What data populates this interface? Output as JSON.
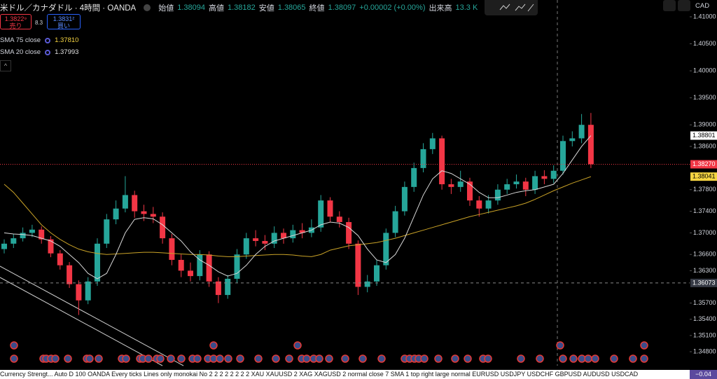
{
  "header": {
    "symbol": "米ドル／カナダドル · 4時間 · OANDA",
    "ohlc": [
      {
        "label": "始値",
        "value": "1.38094"
      },
      {
        "label": "高値",
        "value": "1.38182"
      },
      {
        "label": "安値",
        "value": "1.38065"
      },
      {
        "label": "終値",
        "value": "1.38097"
      }
    ],
    "change": "+0.00002 (+0.00%)",
    "volume_label": "出来高",
    "volume": "13.3 K"
  },
  "trade": {
    "sell_price": "1.3822⁹",
    "sell_label": "売り",
    "spread": "8.3",
    "buy_price": "1.3831²",
    "buy_label": "買い"
  },
  "currency": "CAD",
  "indicator_bar": {
    "text": "Currency Strengt... Auto D 100 OANDA Every ticks Lines only monokai No 2 2 2 2 2 2 2 2 XAU XAUUSD 2 XAG XAGUSD 2 normal close 7 SMA 1 top right large normal EURUSD USDJPY USDCHF GBPUSD AUDUSD USDCAD",
    "value": "−0.04"
  },
  "chart_data": {
    "type": "candlestick",
    "up_color": "#26a69a",
    "down_color": "#f23645",
    "grid": false,
    "ylim": [
      1.34567,
      1.41311
    ],
    "yticks": [
      {
        "value": 1.41,
        "label": "1.41000"
      },
      {
        "value": 1.405,
        "label": "1.40500"
      },
      {
        "value": 1.4,
        "label": "1.40000"
      },
      {
        "value": 1.395,
        "label": "1.39500"
      },
      {
        "value": 1.39,
        "label": "1.39000"
      },
      {
        "value": 1.386,
        "label": "1.38600"
      },
      {
        "value": 1.378,
        "label": "1.37800"
      },
      {
        "value": 1.374,
        "label": "1.37400"
      },
      {
        "value": 1.37,
        "label": "1.37000"
      },
      {
        "value": 1.366,
        "label": "1.36600"
      },
      {
        "value": 1.363,
        "label": "1.36300"
      },
      {
        "value": 1.357,
        "label": "1.35700"
      },
      {
        "value": 1.354,
        "label": "1.35400"
      },
      {
        "value": 1.351,
        "label": "1.35100"
      },
      {
        "value": 1.348,
        "label": "1.34800"
      }
    ],
    "open": [
      1.367,
      1.368,
      1.369,
      1.37,
      1.3706,
      1.3688,
      1.3662,
      1.364,
      1.3605,
      1.3575,
      1.361,
      1.368,
      1.3725,
      1.3745,
      1.377,
      1.374,
      1.3735,
      1.373,
      1.369,
      1.365,
      1.363,
      1.362,
      1.366,
      1.361,
      1.3585,
      1.3615,
      1.366,
      1.369,
      1.3685,
      1.368,
      1.37,
      1.369,
      1.3705,
      1.37,
      1.371,
      1.376,
      1.373,
      1.372,
      1.368,
      1.36,
      1.361,
      1.364,
      1.37,
      1.374,
      1.3785,
      1.382,
      1.3855,
      1.3875,
      1.379,
      1.3785,
      1.3795,
      1.376,
      1.3745,
      1.376,
      1.378,
      1.379,
      1.3795,
      1.378,
      1.3805,
      1.38,
      1.3815,
      1.387,
      1.3875,
      1.39
    ],
    "high": [
      1.3688,
      1.3698,
      1.371,
      1.3715,
      1.3712,
      1.3694,
      1.3668,
      1.3646,
      1.3612,
      1.3618,
      1.369,
      1.3735,
      1.376,
      1.3805,
      1.3778,
      1.3752,
      1.3748,
      1.3738,
      1.3698,
      1.366,
      1.3645,
      1.3668,
      1.3666,
      1.3618,
      1.3622,
      1.367,
      1.37,
      1.3705,
      1.3696,
      1.3712,
      1.3708,
      1.3715,
      1.3718,
      1.3725,
      1.377,
      1.3766,
      1.374,
      1.3728,
      1.3686,
      1.3622,
      1.365,
      1.3708,
      1.375,
      1.3795,
      1.383,
      1.3866,
      1.3885,
      1.388,
      1.38,
      1.3815,
      1.3802,
      1.3768,
      1.377,
      1.379,
      1.38,
      1.3808,
      1.3802,
      1.3815,
      1.3816,
      1.3825,
      1.388,
      1.3888,
      1.392,
      1.3922
    ],
    "low": [
      1.3662,
      1.3672,
      1.3684,
      1.3692,
      1.368,
      1.3655,
      1.3632,
      1.3598,
      1.3548,
      1.3568,
      1.3602,
      1.3672,
      1.3716,
      1.3738,
      1.3728,
      1.3722,
      1.3718,
      1.368,
      1.364,
      1.3618,
      1.361,
      1.3612,
      1.36,
      1.357,
      1.3578,
      1.3608,
      1.3652,
      1.3675,
      1.3668,
      1.3672,
      1.368,
      1.3682,
      1.369,
      1.3692,
      1.3702,
      1.372,
      1.371,
      1.367,
      1.3585,
      1.359,
      1.3602,
      1.3632,
      1.3692,
      1.3732,
      1.3776,
      1.3812,
      1.3846,
      1.378,
      1.3772,
      1.3776,
      1.375,
      1.373,
      1.3736,
      1.3752,
      1.3772,
      1.3782,
      1.3768,
      1.3772,
      1.379,
      1.3792,
      1.3808,
      1.386,
      1.3866,
      1.382
    ],
    "close": [
      1.368,
      1.369,
      1.37,
      1.3706,
      1.3688,
      1.3662,
      1.364,
      1.3605,
      1.3575,
      1.361,
      1.368,
      1.3725,
      1.3745,
      1.377,
      1.374,
      1.3735,
      1.373,
      1.369,
      1.365,
      1.363,
      1.362,
      1.366,
      1.361,
      1.3585,
      1.3615,
      1.366,
      1.369,
      1.3685,
      1.368,
      1.37,
      1.369,
      1.3705,
      1.37,
      1.371,
      1.376,
      1.373,
      1.372,
      1.368,
      1.36,
      1.361,
      1.364,
      1.37,
      1.374,
      1.3785,
      1.382,
      1.3855,
      1.3875,
      1.379,
      1.3785,
      1.3795,
      1.376,
      1.3745,
      1.376,
      1.378,
      1.379,
      1.3795,
      1.378,
      1.3805,
      1.38,
      1.3815,
      1.387,
      1.3875,
      1.39,
      1.3827
    ],
    "series": [
      {
        "name": "SMA 75 close",
        "legend_value": "1.37810",
        "color": "#c9a227",
        "values": [
          1.379,
          1.3775,
          1.3755,
          1.3735,
          1.3715,
          1.37,
          1.3688,
          1.3678,
          1.367,
          1.3665,
          1.3662,
          1.366,
          1.3661,
          1.3662,
          1.3663,
          1.3664,
          1.3664,
          1.3663,
          1.3662,
          1.3661,
          1.366,
          1.366,
          1.3659,
          1.3657,
          1.3656,
          1.3656,
          1.3657,
          1.3658,
          1.3659,
          1.366,
          1.366,
          1.3659,
          1.3657,
          1.3656,
          1.366,
          1.3668,
          1.3672,
          1.3676,
          1.3678,
          1.368,
          1.3682,
          1.3686,
          1.369,
          1.3695,
          1.37,
          1.3705,
          1.371,
          1.3715,
          1.372,
          1.3725,
          1.373,
          1.3734,
          1.3738,
          1.3742,
          1.3746,
          1.375,
          1.3755,
          1.3762,
          1.377,
          1.3778,
          1.3785,
          1.3792,
          1.3798,
          1.38041
        ]
      },
      {
        "name": "SMA 20 close",
        "legend_value": "1.37993",
        "color": "#d8d8d8",
        "values": [
          1.37,
          1.3698,
          1.3697,
          1.3695,
          1.369,
          1.3685,
          1.3675,
          1.366,
          1.3645,
          1.3625,
          1.3615,
          1.3625,
          1.366,
          1.37,
          1.3725,
          1.3728,
          1.3726,
          1.3715,
          1.37,
          1.3685,
          1.3665,
          1.365,
          1.364,
          1.3628,
          1.362,
          1.3625,
          1.364,
          1.366,
          1.3675,
          1.3685,
          1.369,
          1.3695,
          1.37,
          1.3705,
          1.3715,
          1.372,
          1.3718,
          1.371,
          1.3695,
          1.367,
          1.365,
          1.3645,
          1.366,
          1.369,
          1.373,
          1.377,
          1.38,
          1.3815,
          1.381,
          1.38,
          1.379,
          1.3775,
          1.3765,
          1.3765,
          1.377,
          1.3775,
          1.3778,
          1.378,
          1.3785,
          1.379,
          1.381,
          1.3835,
          1.386,
          1.38801
        ]
      }
    ],
    "price_labels": [
      {
        "value": 1.38801,
        "label": "1.38801",
        "color": "#ffffff",
        "text_color": "#000000",
        "line": "none"
      },
      {
        "value": 1.3827,
        "label": "1.38270",
        "color": "#f23645",
        "text_color": "#ffffff",
        "line": "dotted"
      },
      {
        "value": 1.38041,
        "label": "1.38041",
        "color": "#f5d442",
        "text_color": "#000000",
        "line": "none"
      },
      {
        "value": 1.36073,
        "label": "1.36073",
        "color": "#363a45",
        "text_color": "#ffffff",
        "line": "dashed"
      }
    ]
  }
}
